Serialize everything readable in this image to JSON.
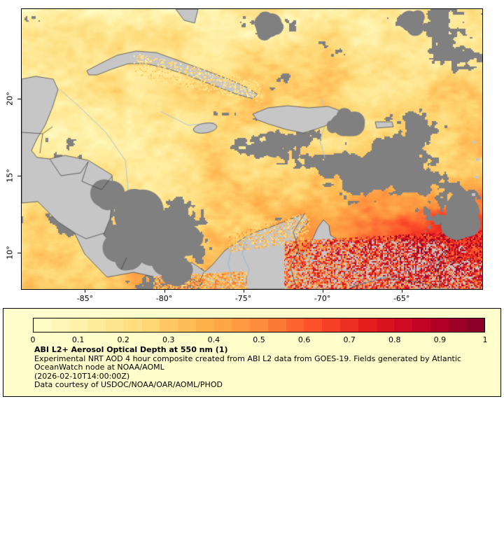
{
  "map": {
    "land_color": "#c6c6c6",
    "nodata_color": "#808080",
    "coast_color": "#4a4a4a",
    "border_color": "#333333",
    "river_color": "#8fb4d9",
    "eez_color": "#a9c5e2"
  },
  "chart_data": {
    "type": "heatmap",
    "title": "ABI L2+ Aerosol Optical Depth at 550 nm (1)",
    "x_axis": {
      "range": [
        -89,
        -59.9
      ],
      "ticks": [
        {
          "value": -85,
          "label": "-85°"
        },
        {
          "value": -80,
          "label": "-80°"
        },
        {
          "value": -75,
          "label": "-75°"
        },
        {
          "value": -70,
          "label": "-70°"
        },
        {
          "value": -65,
          "label": "-65°"
        }
      ]
    },
    "y_axis": {
      "range": [
        7.62,
        25.82
      ],
      "ticks": [
        {
          "value": 20,
          "label": "20°"
        },
        {
          "value": 15,
          "label": "15°"
        },
        {
          "value": 10,
          "label": "10°"
        }
      ]
    },
    "colorbar": {
      "range": [
        0,
        1
      ],
      "tick_labels": [
        "0",
        "0.1",
        "0.2",
        "0.3",
        "0.4",
        "0.5",
        "0.6",
        "0.7",
        "0.8",
        "0.9",
        "1"
      ],
      "palette": [
        "#ffffcc",
        "#ffeda0",
        "#fed976",
        "#feb24c",
        "#fd8d3c",
        "#fc4e2a",
        "#e31a1c",
        "#bd0026",
        "#800026"
      ]
    }
  },
  "legend": {
    "background": "#ffffcc",
    "title": "ABI L2+ Aerosol Optical Depth at 550 nm (1)",
    "line1": "Experimental NRT AOD 4 hour composite created from ABI L2 data from GOES-19. Fields generated by Atlantic",
    "line2": "OceanWatch node at NOAA/AOML",
    "line3": "(2026-02-10T14:00:00Z)",
    "line4": "Data courtesy of USDOC/NOAA/OAR/AOML/PHOD"
  }
}
